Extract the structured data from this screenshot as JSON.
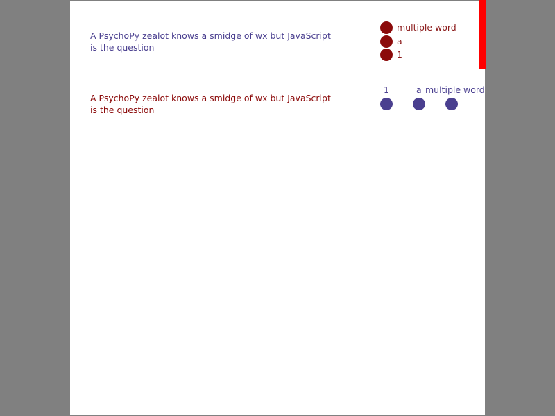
{
  "colors": {
    "background": "#808080",
    "panel": "#ffffff",
    "scrollbar": "#ff0000",
    "item1_accent": "#4a3f8f",
    "item2_accent": "#8b0a0a"
  },
  "items": [
    {
      "question": "A PsychoPy zealot knows a smidge of wx but JavaScript is the question",
      "layout": "vertical",
      "options": [
        "multiple word",
        "a",
        "1"
      ]
    },
    {
      "question": "A PsychoPy zealot knows a smidge of wx but JavaScript is the question",
      "layout": "horizontal",
      "options": [
        "1",
        "a",
        "multiple word"
      ]
    }
  ]
}
